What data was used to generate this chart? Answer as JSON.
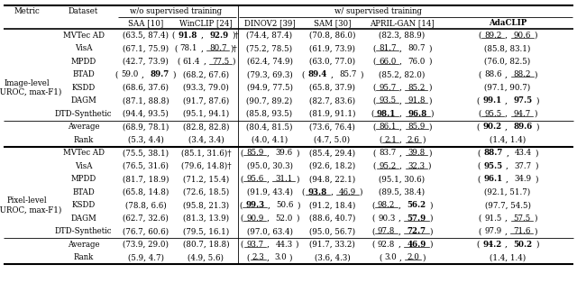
{
  "col_headers": [
    "SAA [10]",
    "WinCLIP [24]",
    "DINOV2 [39]",
    "SAM [30]",
    "APRIL-GAN [14]",
    "AdaCLIP"
  ],
  "image_datasets": [
    "MVTec AD",
    "VisA",
    "MPDD",
    "BTAD",
    "KSDD",
    "DAGM",
    "DTD-Synthetic"
  ],
  "image_data": {
    "SAA": [
      "(63.5, 87.4)",
      "(67.1, 75.9)",
      "(42.7, 73.9)",
      "(59.0, 89.7)",
      "(68.6, 37.6)",
      "(87.1, 88.8)",
      "(94.4, 93.5)"
    ],
    "WinCLIP": [
      "(91.8, 92.9)†",
      "(78.1, 80.7)†",
      "(61.4, 77.5)",
      "(68.2, 67.6)",
      "(93.3, 79.0)",
      "(91.7, 87.6)",
      "(95.1, 94.1)"
    ],
    "DINOV2": [
      "(74.4, 87.4)",
      "(75.2, 78.5)",
      "(62.4, 74.9)",
      "(79.3, 69.3)",
      "(94.9, 77.5)",
      "(90.7, 89.2)",
      "(85.8, 93.5)"
    ],
    "SAM": [
      "(70.8, 86.0)",
      "(61.9, 73.9)",
      "(63.0, 77.0)",
      "(89.4, 85.7)",
      "(65.8, 37.9)",
      "(82.7, 83.6)",
      "(81.9, 91.1)"
    ],
    "APRIL_GAN": [
      "(82.3, 88.9)",
      "(81.7, 80.7)",
      "(66.0, 76.0)",
      "(85.2, 82.0)",
      "(95.7, 85.2)",
      "(93.5, 91.8)",
      "(98.1, 96.8)"
    ],
    "AdaCLIP": [
      "(89.2, 90.6)",
      "(85.8, 83.1)",
      "(76.0, 82.5)",
      "(88.6, 88.2)",
      "(97.1, 90.7)",
      "(99.1, 97.5)",
      "(95.5, 94.7)"
    ]
  },
  "image_avg": {
    "SAA": "(68.9, 78.1)",
    "WinCLIP": "(82.8, 82.8)",
    "DINOV2": "(80.4, 81.5)",
    "SAM": "(73.6, 76.4)",
    "APRIL_GAN": "(86.1, 85.9)",
    "AdaCLIP": "(90.2, 89.6)"
  },
  "image_rank": {
    "SAA": "(5.3, 4.4)",
    "WinCLIP": "(3.4, 3.4)",
    "DINOV2": "(4.0, 4.1)",
    "SAM": "(4.7, 5.0)",
    "APRIL_GAN": "(2.1, 2.6)",
    "AdaCLIP": "(1.4, 1.4)"
  },
  "pixel_datasets": [
    "MVTec AD",
    "VisA",
    "MPDD",
    "BTAD",
    "KSDD",
    "DAGM",
    "DTD-Synthetic"
  ],
  "pixel_data": {
    "SAA": [
      "(75.5, 38.1)",
      "(76.5, 31.6)",
      "(81.7, 18.9)",
      "(65.8, 14.8)",
      "(78.8, 6.6)",
      "(62.7, 32.6)",
      "(76.7, 60.6)"
    ],
    "WinCLIP": [
      "(85.1, 31.6)†",
      "(79.6, 14.8)†",
      "(71.2, 15.4)",
      "(72.6, 18.5)",
      "(95.8, 21.3)",
      "(81.3, 13.9)",
      "(79.5, 16.1)"
    ],
    "DINOV2": [
      "(85.9, 39.6)",
      "(95.0, 30.3)",
      "(95.6, 31.1)",
      "(91.9, 43.4)",
      "(99.3, 50.6)",
      "(90.9, 52.0)",
      "(97.0, 63.4)"
    ],
    "SAM": [
      "(85.4, 29.4)",
      "(92.6, 18.2)",
      "(94.8, 22.1)",
      "(93.8, 46.9)",
      "(91.2, 18.4)",
      "(88.6, 40.7)",
      "(95.0, 56.7)"
    ],
    "APRIL_GAN": [
      "(83.7, 39.8)",
      "(95.2, 32.3)",
      "(95.1, 30.6)",
      "(89.5, 38.4)",
      "(98.2, 56.2)",
      "(90.3, 57.9)",
      "(97.8, 72.7)"
    ],
    "AdaCLIP": [
      "(88.7, 43.4)",
      "(95.5, 37.7)",
      "(96.1, 34.9)",
      "(92.1, 51.7)",
      "(97.7, 54.5)",
      "(91.5, 57.5)",
      "(97.9, 71.6)"
    ]
  },
  "pixel_avg": {
    "SAA": "(73.9, 29.0)",
    "WinCLIP": "(80.7, 18.8)",
    "DINOV2": "(93.7, 44.3)",
    "SAM": "(91.7, 33.2)",
    "APRIL_GAN": "(92.8, 46.9)",
    "AdaCLIP": "(94.2, 50.2)"
  },
  "pixel_rank": {
    "SAA": "(5.9, 4.7)",
    "WinCLIP": "(4.9, 5.6)",
    "DINOV2": "(2.3, 3.0)",
    "SAM": "(3.6, 4.3)",
    "APRIL_GAN": "(3.0, 2.0)",
    "AdaCLIP": "(1.4, 1.4)"
  },
  "image_bold": {
    "0_WinCLIP": [
      true,
      true
    ],
    "3_SAA": [
      false,
      true
    ],
    "3_SAM": [
      true,
      false
    ],
    "5_AdaCLIP": [
      true,
      true
    ],
    "6_APRIL_GAN": [
      true,
      true
    ]
  },
  "image_ul": {
    "1_WinCLIP": [
      false,
      true
    ],
    "2_WinCLIP": [
      false,
      true
    ],
    "1_APRIL_GAN": [
      true,
      false
    ],
    "2_APRIL_GAN": [
      true,
      false
    ],
    "4_APRIL_GAN": [
      true,
      true
    ],
    "5_APRIL_GAN": [
      true,
      true
    ],
    "6_APRIL_GAN": [
      true,
      true
    ],
    "0_AdaCLIP": [
      true,
      true
    ],
    "3_AdaCLIP": [
      false,
      true
    ],
    "4_AdaCLIP": [
      false,
      false
    ],
    "6_AdaCLIP": [
      true,
      true
    ]
  },
  "pixel_bold": {
    "3_SAM": [
      true,
      false
    ],
    "4_DINOV2": [
      true,
      false
    ],
    "4_APRIL_GAN": [
      false,
      true
    ],
    "5_APRIL_GAN": [
      false,
      true
    ],
    "6_APRIL_GAN": [
      false,
      true
    ],
    "0_AdaCLIP": [
      true,
      false
    ],
    "1_AdaCLIP": [
      true,
      false
    ],
    "2_AdaCLIP": [
      true,
      false
    ],
    "3_AdaCLIP": [
      false,
      false
    ],
    "4_AdaCLIP": [
      false,
      false
    ],
    "5_AdaCLIP": [
      false,
      false
    ],
    "6_AdaCLIP": [
      false,
      false
    ]
  },
  "pixel_ul": {
    "0_DINOV2": [
      true,
      false
    ],
    "1_DINOV2": [
      false,
      false
    ],
    "2_DINOV2": [
      true,
      true
    ],
    "3_SAM": [
      true,
      true
    ],
    "4_DINOV2": [
      true,
      false
    ],
    "5_DINOV2": [
      true,
      false
    ],
    "6_DINOV2": [
      false,
      false
    ],
    "0_APRIL_GAN": [
      false,
      true
    ],
    "1_APRIL_GAN": [
      true,
      true
    ],
    "4_APRIL_GAN": [
      true,
      false
    ],
    "5_APRIL_GAN": [
      false,
      true
    ],
    "6_APRIL_GAN": [
      true,
      true
    ],
    "3_AdaCLIP": [
      false,
      false
    ],
    "5_AdaCLIP": [
      false,
      true
    ],
    "6_AdaCLIP": [
      false,
      true
    ],
    "0_AdaCLIP": [
      false,
      false
    ],
    "1_AdaCLIP": [
      false,
      false
    ],
    "2_AdaCLIP": [
      false,
      false
    ]
  },
  "img_avg_bold": {
    "APRIL_GAN": [
      false,
      false
    ],
    "AdaCLIP": [
      true,
      true
    ]
  },
  "img_avg_ul": {
    "APRIL_GAN": [
      true,
      true
    ],
    "AdaCLIP": [
      false,
      false
    ]
  },
  "img_rank_bold": {
    "AdaCLIP": [
      false,
      false
    ]
  },
  "img_rank_ul": {
    "APRIL_GAN": [
      true,
      true
    ]
  },
  "pix_avg_bold": {
    "AdaCLIP": [
      true,
      true
    ],
    "APRIL_GAN": [
      false,
      true
    ]
  },
  "pix_avg_ul": {
    "DINOV2": [
      true,
      false
    ],
    "APRIL_GAN": [
      false,
      true
    ]
  },
  "pix_rank_bold": {
    "AdaCLIP": [
      false,
      false
    ]
  },
  "pix_rank_ul": {
    "DINOV2": [
      true,
      false
    ],
    "APRIL_GAN": [
      false,
      true
    ]
  },
  "font_size": 6.2,
  "bg_color": "#ffffff"
}
